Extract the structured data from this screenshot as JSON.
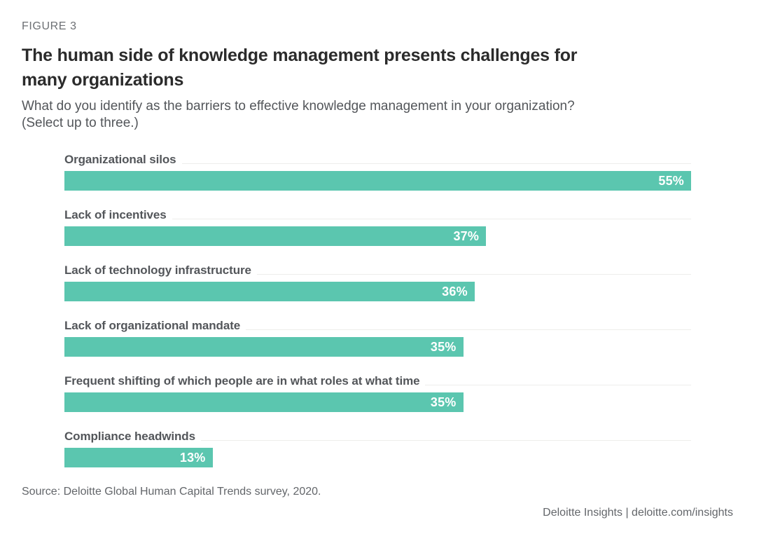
{
  "figure_label": "FIGURE 3",
  "title": "The human side of knowledge management presents challenges for many organizations",
  "subtitle": {
    "question": "What do you identify as the barriers to effective knowledge management in your organization?",
    "instruction": "(Select up to three.)"
  },
  "chart_data": {
    "type": "bar",
    "orientation": "horizontal",
    "categories": [
      "Organizational silos",
      "Lack of incentives",
      "Lack of technology infrastructure",
      "Lack of organizational mandate",
      "Frequent shifting of which people are in what roles at what time",
      "Compliance headwinds"
    ],
    "values": [
      55,
      37,
      36,
      35,
      35,
      13
    ],
    "value_labels": [
      "55%",
      "37%",
      "36%",
      "35%",
      "35%",
      "13%"
    ],
    "xlim": [
      0,
      55
    ],
    "grid": false,
    "legend": false,
    "bar_color": "#5bc6af",
    "value_label_color": "#ffffff"
  },
  "source": "Source: Deloitte Global Human Capital Trends survey, 2020.",
  "footer": "Deloitte Insights | deloitte.com/insights",
  "colors": {
    "accent_teal": "#5bc6af",
    "title_text": "#2b2b2b",
    "label_text": "#53565a",
    "muted_text": "#63666a"
  }
}
